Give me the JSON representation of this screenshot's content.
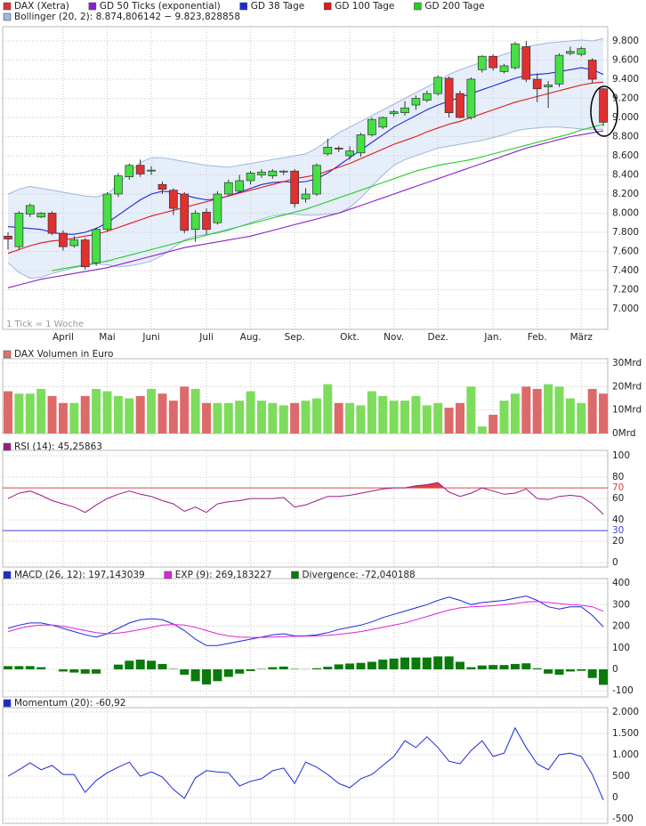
{
  "chart_data": [
    {
      "type": "candlestick",
      "categories": [
        null,
        null,
        null,
        null,
        null,
        "April",
        null,
        null,
        null,
        "Mai",
        null,
        null,
        null,
        "Juni",
        null,
        null,
        null,
        null,
        "Juli",
        null,
        null,
        null,
        "Aug.",
        null,
        null,
        null,
        "Sep.",
        null,
        null,
        null,
        null,
        "Okt.",
        null,
        null,
        null,
        "Nov.",
        null,
        null,
        null,
        "Dez.",
        null,
        null,
        null,
        null,
        "Jan.",
        null,
        null,
        null,
        "Feb.",
        null,
        null,
        null,
        "März",
        null,
        null
      ],
      "candles": {
        "name": "DAX (Xetra)",
        "color": "#e03030",
        "up_color": "#44e044",
        "down_color": "#e03030",
        "open": [
          7760,
          7650,
          7990,
          7960,
          8000,
          7790,
          7660,
          7720,
          7480,
          7830,
          8200,
          8380,
          8500,
          8440,
          8300,
          8240,
          8200,
          7830,
          8010,
          7900,
          8200,
          8230,
          8340,
          8400,
          8390,
          8430,
          8440,
          8150,
          8200,
          8620,
          8680,
          8600,
          8630,
          8820,
          8900,
          9040,
          9050,
          9130,
          9180,
          9250,
          9410,
          9250,
          9000,
          9500,
          9640,
          9480,
          9520,
          9740,
          9400,
          9320,
          9350,
          9670,
          9660,
          9600,
          9300
        ],
        "high": [
          7800,
          8020,
          8100,
          8010,
          8020,
          7820,
          7760,
          7740,
          7850,
          8220,
          8420,
          8520,
          8560,
          8490,
          8330,
          8260,
          8220,
          8030,
          8050,
          8230,
          8350,
          8400,
          8440,
          8460,
          8460,
          8450,
          8460,
          8260,
          8520,
          8780,
          8700,
          8700,
          8840,
          9000,
          9010,
          9080,
          9170,
          9230,
          9280,
          9440,
          9430,
          9280,
          9420,
          9650,
          9660,
          9560,
          9790,
          9800,
          9460,
          9380,
          9670,
          9740,
          9740,
          9620,
          9310
        ],
        "low": [
          7620,
          7620,
          7960,
          7950,
          7770,
          7610,
          7640,
          7410,
          7450,
          7810,
          8170,
          8350,
          8380,
          8400,
          8200,
          7980,
          7790,
          7700,
          7780,
          7880,
          8180,
          8210,
          8300,
          8370,
          8360,
          8400,
          8060,
          8110,
          8180,
          8600,
          8640,
          8560,
          8590,
          8800,
          8880,
          9010,
          9020,
          9080,
          9160,
          9230,
          9000,
          8990,
          8980,
          9470,
          9490,
          9460,
          9500,
          9370,
          9160,
          9100,
          9320,
          9650,
          9640,
          9360,
          8910
        ],
        "close": [
          7730,
          8000,
          8080,
          8000,
          7790,
          7650,
          7720,
          7440,
          7830,
          8200,
          8390,
          8500,
          8410,
          8450,
          8250,
          8050,
          7820,
          8000,
          7830,
          8200,
          8320,
          8340,
          8420,
          8430,
          8440,
          8440,
          8100,
          8200,
          8500,
          8690,
          8670,
          8650,
          8820,
          8980,
          9000,
          9060,
          9100,
          9200,
          9250,
          9420,
          9050,
          9000,
          9400,
          9640,
          9520,
          9540,
          9770,
          9400,
          9300,
          9340,
          9650,
          9690,
          9720,
          9400,
          8950
        ]
      },
      "series": [
        {
          "name": "GD 50 Ticks (exponential)",
          "color": "#8a1fc8",
          "values": [
            7220,
            7250,
            7280,
            7310,
            7330,
            7350,
            7370,
            7390,
            7410,
            7430,
            7460,
            7490,
            7520,
            7550,
            7580,
            7610,
            7640,
            7660,
            7680,
            7700,
            7720,
            7740,
            7760,
            7790,
            7820,
            7850,
            7880,
            7910,
            7940,
            7970,
            8000,
            8040,
            8080,
            8120,
            8160,
            8200,
            8240,
            8280,
            8320,
            8360,
            8400,
            8440,
            8480,
            8520,
            8560,
            8600,
            8640,
            8680,
            8710,
            8740,
            8770,
            8800,
            8820,
            8840,
            8860
          ]
        },
        {
          "name": "GD 38 Tage",
          "color": "#1a2ad8",
          "values": [
            7860,
            7850,
            7840,
            7830,
            7800,
            7780,
            7780,
            7800,
            7840,
            7900,
            7980,
            8060,
            8140,
            8200,
            8230,
            8220,
            8190,
            8160,
            8140,
            8150,
            8180,
            8220,
            8260,
            8300,
            8320,
            8330,
            8320,
            8330,
            8360,
            8420,
            8500,
            8580,
            8660,
            8740,
            8820,
            8900,
            8960,
            9020,
            9080,
            9130,
            9170,
            9210,
            9250,
            9290,
            9330,
            9370,
            9410,
            9440,
            9450,
            9460,
            9480,
            9500,
            9520,
            9500,
            9450
          ]
        },
        {
          "name": "GD 100 Tage",
          "color": "#e01818",
          "values": [
            7580,
            7620,
            7660,
            7690,
            7710,
            7720,
            7740,
            7760,
            7780,
            7810,
            7850,
            7890,
            7930,
            7970,
            8000,
            8030,
            8060,
            8090,
            8120,
            8150,
            8180,
            8210,
            8240,
            8270,
            8300,
            8330,
            8360,
            8380,
            8400,
            8440,
            8480,
            8520,
            8570,
            8620,
            8670,
            8720,
            8760,
            8800,
            8850,
            8890,
            8930,
            8960,
            9000,
            9040,
            9080,
            9120,
            9160,
            9190,
            9220,
            9250,
            9280,
            9310,
            9340,
            9360,
            9370
          ]
        },
        {
          "name": "GD 200 Tage",
          "color": "#22cc22",
          "values": [
            null,
            null,
            null,
            null,
            7400,
            7420,
            7440,
            7460,
            7480,
            7500,
            7530,
            7560,
            7590,
            7620,
            7650,
            7680,
            7710,
            7740,
            7770,
            7800,
            7830,
            7860,
            7890,
            7920,
            7950,
            7980,
            8010,
            8040,
            8080,
            8120,
            8160,
            8200,
            8240,
            8280,
            8320,
            8360,
            8400,
            8440,
            8470,
            8500,
            8520,
            8540,
            8560,
            8590,
            8620,
            8650,
            8680,
            8710,
            8740,
            8770,
            8800,
            8830,
            8870,
            8900,
            8930
          ]
        }
      ],
      "band": {
        "name": "Bollinger (20, 2): 8.874,806142 − 9.823,828858",
        "color": "#9db8dc",
        "fill": "#e6eefa",
        "upper": [
          8200,
          8250,
          8280,
          8260,
          8240,
          8220,
          8200,
          8180,
          8170,
          8200,
          8300,
          8430,
          8530,
          8580,
          8580,
          8560,
          8540,
          8520,
          8500,
          8490,
          8480,
          8500,
          8520,
          8540,
          8560,
          8580,
          8600,
          8620,
          8680,
          8760,
          8840,
          8900,
          8960,
          9020,
          9080,
          9140,
          9200,
          9260,
          9320,
          9380,
          9450,
          9500,
          9540,
          9580,
          9620,
          9660,
          9700,
          9740,
          9760,
          9780,
          9790,
          9800,
          9810,
          9800,
          9824
        ],
        "lower": [
          7480,
          7380,
          7320,
          7330,
          7370,
          7400,
          7430,
          7450,
          7470,
          7460,
          7440,
          7450,
          7470,
          7500,
          7560,
          7640,
          7720,
          7760,
          7780,
          7790,
          7820,
          7860,
          7900,
          7940,
          7970,
          7990,
          7990,
          7980,
          7980,
          7990,
          8000,
          8060,
          8160,
          8280,
          8400,
          8500,
          8560,
          8600,
          8640,
          8680,
          8700,
          8720,
          8740,
          8760,
          8790,
          8820,
          8860,
          8880,
          8890,
          8900,
          8900,
          8890,
          8880,
          8875,
          8875
        ]
      },
      "note": "1 Tick = 1 Woche",
      "ylim": [
        6786,
        9949
      ],
      "yticks": [
        {
          "value": 7000,
          "label": "7.000"
        },
        {
          "value": 7200,
          "label": "7.200"
        },
        {
          "value": 7400,
          "label": "7.400"
        },
        {
          "value": 7600,
          "label": "7.600"
        },
        {
          "value": 7800,
          "label": "7.800"
        },
        {
          "value": 8000,
          "label": "8.000"
        },
        {
          "value": 8200,
          "label": "8.200"
        },
        {
          "value": 8400,
          "label": "8.400"
        },
        {
          "value": 8600,
          "label": "8.600"
        },
        {
          "value": 8800,
          "label": "8.800"
        },
        {
          "value": 9000,
          "label": "9.000"
        },
        {
          "value": 9200,
          "label": "9.200"
        },
        {
          "value": 9400,
          "label": "9.400"
        },
        {
          "value": 9600,
          "label": "9.600"
        },
        {
          "value": 9800,
          "label": "9.800"
        }
      ],
      "grid": true
    },
    {
      "type": "bar",
      "title": "DAX Volumen in Euro",
      "color": "#e07070",
      "up_color": "#7ddc5c",
      "down_color": "#dd6a6a",
      "values": [
        18,
        17,
        17,
        19,
        16,
        13,
        13,
        16,
        19,
        18,
        16,
        15,
        16,
        19,
        17,
        14,
        20,
        19,
        13,
        13,
        13,
        14,
        18,
        14,
        13,
        12,
        13,
        14,
        15,
        21,
        13,
        13,
        12,
        18,
        16,
        14,
        14,
        16,
        12,
        13,
        11,
        13,
        20,
        3,
        8,
        14,
        17,
        20,
        19,
        21,
        20,
        15,
        13,
        19,
        17
      ],
      "ylim": [
        0,
        31.9
      ],
      "yticks": [
        {
          "value": 0,
          "label": "0Mrd"
        },
        {
          "value": 10,
          "label": "10Mrd"
        },
        {
          "value": 20,
          "label": "20Mrd"
        },
        {
          "value": 30,
          "label": "30Mrd"
        }
      ],
      "grid": true
    },
    {
      "type": "line",
      "series": [
        {
          "name": "RSI (14): 45,25863",
          "color": "#9a1a8a",
          "values": [
            60,
            65,
            67,
            63,
            58,
            55,
            52,
            47,
            54,
            60,
            64,
            67,
            64,
            62,
            58,
            55,
            48,
            52,
            47,
            55,
            57,
            58,
            60,
            60,
            60,
            61,
            52,
            54,
            58,
            62,
            62,
            63,
            65,
            67,
            69,
            70,
            70,
            72,
            73,
            75,
            66,
            62,
            65,
            70,
            67,
            64,
            65,
            69,
            60,
            59,
            62,
            63,
            62,
            55,
            45.26
          ]
        }
      ],
      "levels": [
        {
          "value": 70,
          "color": "#e04040"
        },
        {
          "value": 30,
          "color": "#4040e0"
        }
      ],
      "ylim": [
        -4,
        105
      ],
      "yticks": [
        0,
        20,
        40,
        60,
        80,
        100
      ],
      "grid": true
    },
    {
      "type": "line",
      "series": [
        {
          "name": "MACD (26, 12): 197,143039",
          "color": "#1a2ad8",
          "values": [
            190,
            205,
            215,
            215,
            205,
            190,
            175,
            160,
            150,
            165,
            190,
            215,
            230,
            235,
            230,
            210,
            180,
            140,
            110,
            110,
            120,
            130,
            140,
            150,
            160,
            165,
            155,
            155,
            160,
            170,
            185,
            195,
            205,
            220,
            240,
            255,
            270,
            285,
            300,
            320,
            335,
            320,
            300,
            310,
            315,
            320,
            330,
            340,
            320,
            290,
            280,
            290,
            290,
            250,
            197
          ]
        },
        {
          "name": "EXP (9): 269,183227",
          "color": "#e020e0",
          "values": [
            175,
            190,
            200,
            205,
            205,
            200,
            190,
            180,
            170,
            165,
            168,
            175,
            185,
            195,
            205,
            208,
            205,
            195,
            180,
            165,
            155,
            150,
            148,
            148,
            150,
            152,
            153,
            154,
            155,
            158,
            162,
            168,
            175,
            185,
            195,
            205,
            215,
            230,
            245,
            260,
            275,
            285,
            290,
            292,
            295,
            300,
            305,
            312,
            315,
            310,
            305,
            300,
            297,
            290,
            269
          ]
        },
        {
          "name": "Divergence: -72,040188",
          "color": "#0a7a0a",
          "kind": "bar",
          "values": [
            15,
            15,
            15,
            10,
            0,
            -10,
            -15,
            -20,
            -20,
            0,
            22,
            40,
            45,
            40,
            25,
            2,
            -25,
            -55,
            -70,
            -55,
            -35,
            -20,
            -8,
            2,
            10,
            13,
            2,
            1,
            5,
            12,
            23,
            27,
            30,
            35,
            45,
            50,
            55,
            55,
            55,
            60,
            60,
            35,
            10,
            18,
            20,
            20,
            25,
            28,
            5,
            -20,
            -25,
            -10,
            -7,
            -40,
            -72
          ]
        }
      ],
      "ylim": [
        -128,
        421
      ],
      "yticks": [
        -100,
        0,
        100,
        200,
        300,
        400
      ],
      "grid": true
    },
    {
      "type": "line",
      "series": [
        {
          "name": "Momentum (20): -60,92",
          "color": "#1a2ad8",
          "values": [
            500,
            650,
            810,
            650,
            750,
            540,
            540,
            120,
            400,
            580,
            710,
            830,
            500,
            600,
            480,
            190,
            -20,
            460,
            630,
            600,
            580,
            270,
            380,
            440,
            630,
            690,
            330,
            830,
            710,
            540,
            330,
            230,
            440,
            540,
            750,
            960,
            1330,
            1170,
            1420,
            1170,
            850,
            790,
            1100,
            1330,
            960,
            1040,
            1630,
            1170,
            790,
            650,
            1000,
            1040,
            960,
            540,
            -61
          ]
        }
      ],
      "ylim": [
        -604,
        2104
      ],
      "yticks": [
        -500,
        0,
        500,
        {
          "value": 1000,
          "label": "1.000"
        },
        {
          "value": 1500,
          "label": "1.500"
        },
        {
          "value": 2000,
          "label": "2.000"
        }
      ],
      "grid": true
    }
  ]
}
